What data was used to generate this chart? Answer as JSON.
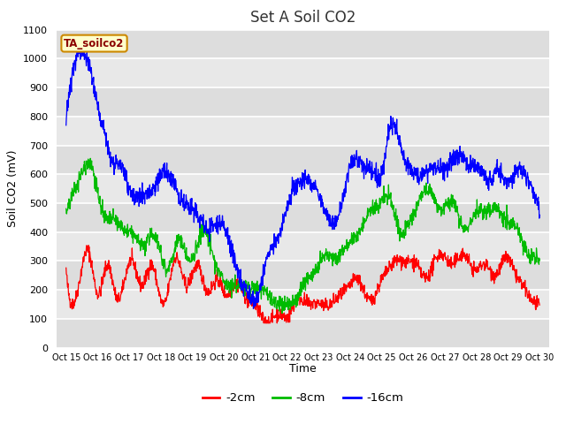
{
  "title": "Set A Soil CO2",
  "xlabel": "Time",
  "ylabel": "Soil CO2 (mV)",
  "ylim": [
    0,
    1100
  ],
  "yticks": [
    0,
    100,
    200,
    300,
    400,
    500,
    600,
    700,
    800,
    900,
    1000,
    1100
  ],
  "fig_bg_color": "#ffffff",
  "plot_bg_color": "#e8e8e8",
  "legend_label": "TA_soilco2",
  "series_red_label": "-2cm",
  "series_red_color": "#ff0000",
  "series_green_label": "-8cm",
  "series_green_color": "#00bb00",
  "series_blue_label": "-16cm",
  "series_blue_color": "#0000ff",
  "xtick_labels": [
    "Oct 15",
    "Oct 16",
    "Oct 17",
    "Oct 18",
    "Oct 19",
    "Oct 20",
    "Oct 21",
    "Oct 22",
    "Oct 23",
    "Oct 24",
    "Oct 25",
    "Oct 26",
    "Oct 27",
    "Oct 28",
    "Oct 29",
    "Oct 30"
  ],
  "title_fontsize": 12,
  "axis_fontsize": 9,
  "tick_fontsize": 8,
  "grid_color": "#ffffff",
  "band_color_light": "#ebebeb",
  "band_color_dark": "#d8d8d8"
}
